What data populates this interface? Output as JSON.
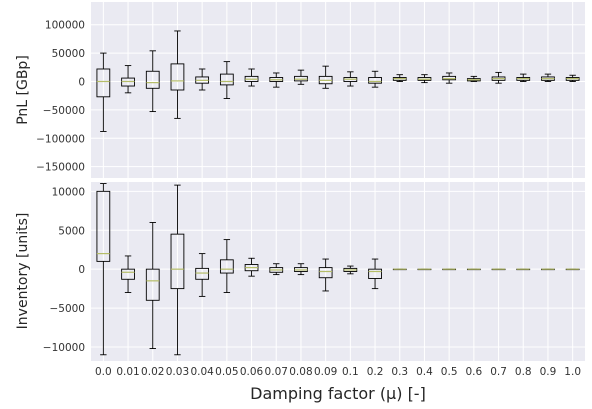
{
  "chart_data": [
    {
      "type": "box",
      "ylabel": "PnL [GBp]",
      "ylim": [
        -170000,
        140000
      ],
      "yticks": [
        -150000,
        -100000,
        -50000,
        0,
        50000,
        100000
      ],
      "ytick_labels": [
        "−150000",
        "−100000",
        "−50000",
        "0",
        "50000",
        "100000"
      ],
      "grid": true,
      "categories": [
        "0.0",
        "0.01",
        "0.02",
        "0.03",
        "0.04",
        "0.05",
        "0.06",
        "0.07",
        "0.08",
        "0.09",
        "0.1",
        "0.2",
        "0.3",
        "0.4",
        "0.5",
        "0.6",
        "0.7",
        "0.8",
        "0.9",
        "1.0"
      ],
      "boxes": [
        {
          "whislo": -88000,
          "q1": -27000,
          "med": 0,
          "q3": 22000,
          "whishi": 50000
        },
        {
          "whislo": -20000,
          "q1": -8000,
          "med": 0,
          "q3": 6000,
          "whishi": 28000
        },
        {
          "whislo": -53000,
          "q1": -12000,
          "med": -2000,
          "q3": 18000,
          "whishi": 54000
        },
        {
          "whislo": -65000,
          "q1": -15000,
          "med": 1000,
          "q3": 31000,
          "whishi": 89000
        },
        {
          "whislo": -15000,
          "q1": -3000,
          "med": 2000,
          "q3": 8000,
          "whishi": 22000
        },
        {
          "whislo": -30000,
          "q1": -6000,
          "med": 0,
          "q3": 13000,
          "whishi": 35000
        },
        {
          "whislo": -8000,
          "q1": 0,
          "med": 4000,
          "q3": 9000,
          "whishi": 22000
        },
        {
          "whislo": -10000,
          "q1": 0,
          "med": 3000,
          "q3": 7000,
          "whishi": 15000
        },
        {
          "whislo": -5000,
          "q1": 1000,
          "med": 4000,
          "q3": 9000,
          "whishi": 20000
        },
        {
          "whislo": -12000,
          "q1": -4000,
          "med": 2000,
          "q3": 9000,
          "whishi": 27000
        },
        {
          "whislo": -8000,
          "q1": 0,
          "med": 4000,
          "q3": 7000,
          "whishi": 17000
        },
        {
          "whislo": -10000,
          "q1": -3000,
          "med": 0,
          "q3": 7000,
          "whishi": 18000
        },
        {
          "whislo": 0,
          "q1": 2000,
          "med": 5000,
          "q3": 7000,
          "whishi": 12000
        },
        {
          "whislo": -2000,
          "q1": 2000,
          "med": 4000,
          "q3": 7000,
          "whishi": 12000
        },
        {
          "whislo": -3000,
          "q1": 3000,
          "med": 5000,
          "q3": 9000,
          "whishi": 15000
        },
        {
          "whislo": 0,
          "q1": 1000,
          "med": 3000,
          "q3": 5000,
          "whishi": 9000
        },
        {
          "whislo": -3000,
          "q1": 2000,
          "med": 5000,
          "q3": 8000,
          "whishi": 16000
        },
        {
          "whislo": 0,
          "q1": 2000,
          "med": 5000,
          "q3": 7000,
          "whishi": 13000
        },
        {
          "whislo": 0,
          "q1": 2000,
          "med": 5000,
          "q3": 8000,
          "whishi": 13000
        },
        {
          "whislo": 0,
          "q1": 2000,
          "med": 5000,
          "q3": 7000,
          "whishi": 11000
        }
      ]
    },
    {
      "type": "box",
      "ylabel": "Inventory [units]",
      "xlabel": "Damping factor (μ) [-]",
      "ylim": [
        -11800,
        11200
      ],
      "yticks": [
        -10000,
        -5000,
        0,
        5000,
        10000
      ],
      "ytick_labels": [
        "−10000",
        "−5000",
        "0",
        "5000",
        "10000"
      ],
      "grid": true,
      "categories": [
        "0.0",
        "0.01",
        "0.02",
        "0.03",
        "0.04",
        "0.05",
        "0.06",
        "0.07",
        "0.08",
        "0.09",
        "0.1",
        "0.2",
        "0.3",
        "0.4",
        "0.5",
        "0.6",
        "0.7",
        "0.8",
        "0.9",
        "1.0"
      ],
      "boxes": [
        {
          "whislo": -11000,
          "q1": 1000,
          "med": 2000,
          "q3": 10000,
          "whishi": 11000
        },
        {
          "whislo": -3000,
          "q1": -1300,
          "med": -400,
          "q3": 0,
          "whishi": 1700
        },
        {
          "whislo": -10200,
          "q1": -4000,
          "med": -1500,
          "q3": 0,
          "whishi": 6000
        },
        {
          "whislo": -11000,
          "q1": -2500,
          "med": 0,
          "q3": 4500,
          "whishi": 10800
        },
        {
          "whislo": -3500,
          "q1": -1300,
          "med": -500,
          "q3": 100,
          "whishi": 2000
        },
        {
          "whislo": -3000,
          "q1": -500,
          "med": 0,
          "q3": 1200,
          "whishi": 3800
        },
        {
          "whislo": -900,
          "q1": -200,
          "med": 200,
          "q3": 600,
          "whishi": 1400
        },
        {
          "whislo": -700,
          "q1": -400,
          "med": -100,
          "q3": 200,
          "whishi": 700
        },
        {
          "whislo": -700,
          "q1": -300,
          "med": -100,
          "q3": 200,
          "whishi": 700
        },
        {
          "whislo": -2800,
          "q1": -1100,
          "med": -300,
          "q3": 200,
          "whishi": 1300
        },
        {
          "whislo": -600,
          "q1": -300,
          "med": -100,
          "q3": 100,
          "whishi": 400
        },
        {
          "whislo": -2500,
          "q1": -1200,
          "med": -300,
          "q3": 0,
          "whishi": 1300
        },
        {
          "whislo": 0,
          "q1": 0,
          "med": 0,
          "q3": 0,
          "whishi": 0
        },
        {
          "whislo": 0,
          "q1": 0,
          "med": 0,
          "q3": 0,
          "whishi": 0
        },
        {
          "whislo": 0,
          "q1": 0,
          "med": 0,
          "q3": 0,
          "whishi": 0
        },
        {
          "whislo": 0,
          "q1": 0,
          "med": 0,
          "q3": 0,
          "whishi": 0
        },
        {
          "whislo": 0,
          "q1": 0,
          "med": 0,
          "q3": 0,
          "whishi": 0
        },
        {
          "whislo": 0,
          "q1": 0,
          "med": 0,
          "q3": 0,
          "whishi": 0
        },
        {
          "whislo": 0,
          "q1": 0,
          "med": 0,
          "q3": 0,
          "whishi": 0
        },
        {
          "whislo": 0,
          "q1": 0,
          "med": 0,
          "q3": 0,
          "whishi": 0
        }
      ]
    }
  ],
  "colors": {
    "plot_background": "#eaeaf2",
    "grid": "#ffffff",
    "box_edge": "#000000",
    "median": "#b5bd68"
  }
}
